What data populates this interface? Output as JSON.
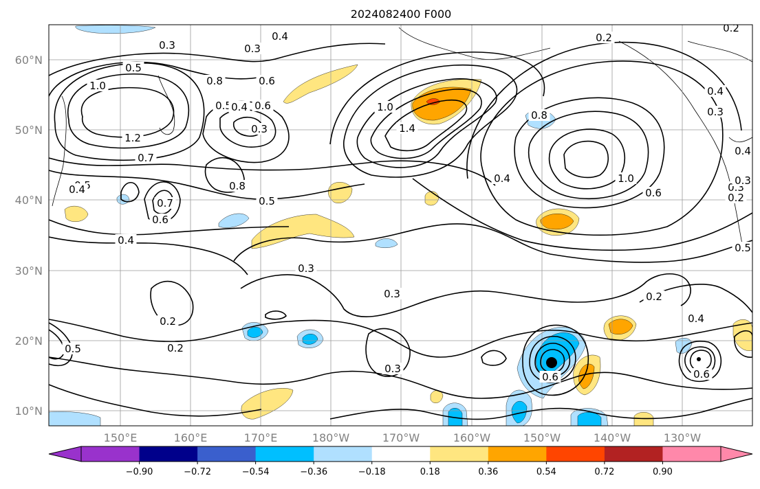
{
  "figure": {
    "title": "2024082400 F000"
  },
  "map": {
    "region": "North Pacific",
    "lat_labels": [
      "60°N",
      "50°N",
      "40°N",
      "30°N",
      "20°N",
      "10°N"
    ],
    "lon_labels": [
      "150°E",
      "160°E",
      "170°E",
      "180°W",
      "170°W",
      "160°W",
      "150°W",
      "140°W",
      "130°W"
    ],
    "gridlines": true,
    "coastlines": true,
    "contour_color": "#000000",
    "contour_labels": [
      "0.3",
      "0.4",
      "0.3",
      "0.5",
      "1.0",
      "0.8",
      "0.6",
      "0.5",
      "0.6",
      "0.4",
      "0.3",
      "1.2",
      "0.7",
      "0.5",
      "0.8",
      "0.7",
      "0.6",
      "0.5",
      "0.4",
      "1.4",
      "1.0",
      "0.8",
      "0.4",
      "1.0",
      "0.6",
      "0.2",
      "0.2",
      "0.4",
      "0.3",
      "0.3",
      "0.3",
      "0.3",
      "0.2",
      "0.2",
      "0.3",
      "0.2",
      "0.4",
      "0.5",
      "0.6",
      "0.6",
      "0.5",
      "0.4",
      "0.4",
      "0.3",
      "0.2"
    ]
  },
  "colorbar": {
    "ticks": [
      "−0.90",
      "−0.72",
      "−0.54",
      "−0.36",
      "−0.18",
      "0.18",
      "0.36",
      "0.54",
      "0.72",
      "0.90"
    ],
    "colors": [
      "#9932cc",
      "#00008b",
      "#3a5fcd",
      "#00bfff",
      "#b0e0ff",
      "#ffffff",
      "#ffe680",
      "#ffa500",
      "#ff4500",
      "#b22222",
      "#ff88aa"
    ],
    "extend": "both"
  }
}
